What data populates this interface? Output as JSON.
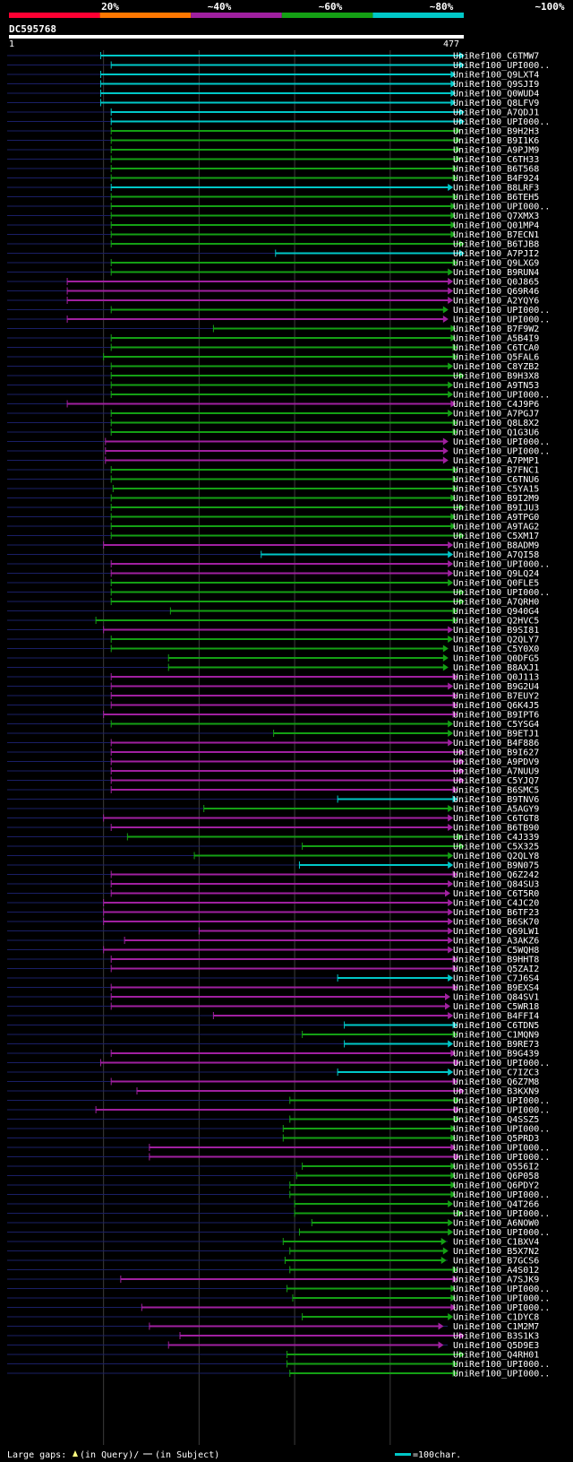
{
  "header": {
    "ticks": [
      "20%",
      "~40%",
      "~60%",
      "~80%",
      "~100%"
    ],
    "colors": [
      "#ff0033",
      "#ff7700",
      "#a020a0",
      "#14a014",
      "#00c8c8"
    ]
  },
  "query": {
    "id": "DC595768",
    "start": "1",
    "end": "477"
  },
  "legend": {
    "gaps_text": "Large gaps:",
    "query_gap_text": "(in Query)/",
    "subject_gap_text": "(in Subject)",
    "scale_text": "=100char."
  },
  "chart_data": {
    "type": "alignment-overview",
    "query_id": "DC595768",
    "query_length": 477,
    "identity_bins": [
      "20%",
      "~40%",
      "~60%",
      "~80%",
      "~100%"
    ],
    "hits": [
      {
        "id": "UniRef100_C6TMW7",
        "start": 97,
        "end": 477,
        "cls": "c"
      },
      {
        "id": "UniRef100_UPI000..",
        "start": 108,
        "end": 477,
        "cls": "c"
      },
      {
        "id": "UniRef100_Q9LXT4",
        "start": 97,
        "end": 468,
        "cls": "c"
      },
      {
        "id": "UniRef100_Q9SJI9",
        "start": 97,
        "end": 468,
        "cls": "c"
      },
      {
        "id": "UniRef100_Q0WUD4",
        "start": 97,
        "end": 468,
        "cls": "c"
      },
      {
        "id": "UniRef100_Q8LFV9",
        "start": 97,
        "end": 468,
        "cls": "c"
      },
      {
        "id": "UniRef100_A7QDJ1",
        "start": 108,
        "end": 477,
        "cls": "c"
      },
      {
        "id": "UniRef100_UPI000..",
        "start": 108,
        "end": 477,
        "cls": "c"
      },
      {
        "id": "UniRef100_B9H2H3",
        "start": 108,
        "end": 473,
        "cls": "g"
      },
      {
        "id": "UniRef100_B9I1K6",
        "start": 108,
        "end": 473,
        "cls": "g"
      },
      {
        "id": "UniRef100_A9PJM9",
        "start": 108,
        "end": 473,
        "cls": "g"
      },
      {
        "id": "UniRef100_C6TH33",
        "start": 108,
        "end": 473,
        "cls": "g"
      },
      {
        "id": "UniRef100_B6T568",
        "start": 108,
        "end": 470,
        "cls": "g"
      },
      {
        "id": "UniRef100_B4F924",
        "start": 108,
        "end": 470,
        "cls": "g"
      },
      {
        "id": "UniRef100_B8LRF3",
        "start": 108,
        "end": 465,
        "cls": "c"
      },
      {
        "id": "UniRef100_B6TEH5",
        "start": 108,
        "end": 470,
        "cls": "g"
      },
      {
        "id": "UniRef100_UPI000..",
        "start": 108,
        "end": 468,
        "cls": "g"
      },
      {
        "id": "UniRef100_Q7XMX3",
        "start": 108,
        "end": 468,
        "cls": "g"
      },
      {
        "id": "UniRef100_Q01MP4",
        "start": 108,
        "end": 468,
        "cls": "g"
      },
      {
        "id": "UniRef100_B7ECN1",
        "start": 108,
        "end": 468,
        "cls": "g"
      },
      {
        "id": "UniRef100_B6TJB8",
        "start": 108,
        "end": 477,
        "cls": "g"
      },
      {
        "id": "UniRef100_A7PJI2",
        "start": 280,
        "end": 477,
        "cls": "c"
      },
      {
        "id": "UniRef100_Q9LXG9",
        "start": 108,
        "end": 470,
        "cls": "g"
      },
      {
        "id": "UniRef100_B9RUN4",
        "start": 108,
        "end": 465,
        "cls": "g"
      },
      {
        "id": "UniRef100_Q0J865",
        "start": 62,
        "end": 465,
        "cls": "m"
      },
      {
        "id": "UniRef100_Q69R46",
        "start": 62,
        "end": 465,
        "cls": "m"
      },
      {
        "id": "UniRef100_A2YQY6",
        "start": 62,
        "end": 465,
        "cls": "m"
      },
      {
        "id": "UniRef100_UPI000..",
        "start": 108,
        "end": 460,
        "cls": "g"
      },
      {
        "id": "UniRef100_UPI000..",
        "start": 62,
        "end": 460,
        "cls": "m"
      },
      {
        "id": "UniRef100_B7F9W2",
        "start": 215,
        "end": 468,
        "cls": "g"
      },
      {
        "id": "UniRef100_A5B4I9",
        "start": 108,
        "end": 468,
        "cls": "g"
      },
      {
        "id": "UniRef100_C6TCA0",
        "start": 108,
        "end": 470,
        "cls": "g"
      },
      {
        "id": "UniRef100_Q5FAL6",
        "start": 100,
        "end": 470,
        "cls": "g"
      },
      {
        "id": "UniRef100_C8YZB2",
        "start": 108,
        "end": 465,
        "cls": "g"
      },
      {
        "id": "UniRef100_B9H3X8",
        "start": 108,
        "end": 477,
        "cls": "g"
      },
      {
        "id": "UniRef100_A9TN53",
        "start": 108,
        "end": 465,
        "cls": "g"
      },
      {
        "id": "UniRef100_UPI000..",
        "start": 108,
        "end": 465,
        "cls": "g"
      },
      {
        "id": "UniRef100_C4J9P6",
        "start": 62,
        "end": 468,
        "cls": "m"
      },
      {
        "id": "UniRef100_A7PGJ7",
        "start": 108,
        "end": 465,
        "cls": "g"
      },
      {
        "id": "UniRef100_Q8L8X2",
        "start": 108,
        "end": 470,
        "cls": "g"
      },
      {
        "id": "UniRef100_Q1G3U6",
        "start": 108,
        "end": 470,
        "cls": "g"
      },
      {
        "id": "UniRef100_UPI000..",
        "start": 102,
        "end": 460,
        "cls": "m"
      },
      {
        "id": "UniRef100_UPI000..",
        "start": 102,
        "end": 460,
        "cls": "m"
      },
      {
        "id": "UniRef100_A7PMP1",
        "start": 102,
        "end": 460,
        "cls": "m"
      },
      {
        "id": "UniRef100_B7FNC1",
        "start": 108,
        "end": 470,
        "cls": "g"
      },
      {
        "id": "UniRef100_C6TNU6",
        "start": 108,
        "end": 470,
        "cls": "g"
      },
      {
        "id": "UniRef100_C5YA15",
        "start": 110,
        "end": 470,
        "cls": "g"
      },
      {
        "id": "UniRef100_B9I2M9",
        "start": 108,
        "end": 468,
        "cls": "g"
      },
      {
        "id": "UniRef100_B9IJU3",
        "start": 108,
        "end": 477,
        "cls": "g"
      },
      {
        "id": "UniRef100_A9TPG0",
        "start": 108,
        "end": 468,
        "cls": "g"
      },
      {
        "id": "UniRef100_A9TAG2",
        "start": 108,
        "end": 468,
        "cls": "g"
      },
      {
        "id": "UniRef100_C5XM17",
        "start": 108,
        "end": 477,
        "cls": "g"
      },
      {
        "id": "UniRef100_B8ADM9",
        "start": 100,
        "end": 465,
        "cls": "m"
      },
      {
        "id": "UniRef100_A7QI58",
        "start": 265,
        "end": 465,
        "cls": "c"
      },
      {
        "id": "UniRef100_UPI000..",
        "start": 108,
        "end": 465,
        "cls": "m"
      },
      {
        "id": "UniRef100_Q9LQ24",
        "start": 108,
        "end": 465,
        "cls": "m"
      },
      {
        "id": "UniRef100_Q0FLE5",
        "start": 108,
        "end": 465,
        "cls": "g"
      },
      {
        "id": "UniRef100_UPI000..",
        "start": 108,
        "end": 477,
        "cls": "g"
      },
      {
        "id": "UniRef100_A7QRH0",
        "start": 108,
        "end": 477,
        "cls": "g"
      },
      {
        "id": "UniRef100_Q940G4",
        "start": 170,
        "end": 470,
        "cls": "g"
      },
      {
        "id": "UniRef100_Q2HVC5",
        "start": 92,
        "end": 470,
        "cls": "g"
      },
      {
        "id": "UniRef100_B9SI81",
        "start": 100,
        "end": 465,
        "cls": "m"
      },
      {
        "id": "UniRef100_Q2QLY7",
        "start": 108,
        "end": 465,
        "cls": "g"
      },
      {
        "id": "UniRef100_C5Y0X0",
        "start": 108,
        "end": 460,
        "cls": "g"
      },
      {
        "id": "UniRef100_Q0DFG5",
        "start": 168,
        "end": 460,
        "cls": "g"
      },
      {
        "id": "UniRef100_B8AXJ1",
        "start": 168,
        "end": 460,
        "cls": "g"
      },
      {
        "id": "UniRef100_Q0J113",
        "start": 108,
        "end": 470,
        "cls": "m"
      },
      {
        "id": "UniRef100_B9G2U4",
        "start": 108,
        "end": 465,
        "cls": "m"
      },
      {
        "id": "UniRef100_B7EUY2",
        "start": 108,
        "end": 470,
        "cls": "m"
      },
      {
        "id": "UniRef100_Q6K4J5",
        "start": 108,
        "end": 470,
        "cls": "m"
      },
      {
        "id": "UniRef100_B9IPT6",
        "start": 100,
        "end": 470,
        "cls": "m"
      },
      {
        "id": "UniRef100_C5YSG4",
        "start": 108,
        "end": 465,
        "cls": "g"
      },
      {
        "id": "UniRef100_B9ETJ1",
        "start": 278,
        "end": 465,
        "cls": "g"
      },
      {
        "id": "UniRef100_B4F886",
        "start": 108,
        "end": 465,
        "cls": "m"
      },
      {
        "id": "UniRef100_B9I627",
        "start": 108,
        "end": 477,
        "cls": "m"
      },
      {
        "id": "UniRef100_A9PDV9",
        "start": 108,
        "end": 477,
        "cls": "m"
      },
      {
        "id": "UniRef100_A7NUU9",
        "start": 108,
        "end": 477,
        "cls": "m"
      },
      {
        "id": "UniRef100_C5YJQ7",
        "start": 108,
        "end": 477,
        "cls": "m"
      },
      {
        "id": "UniRef100_B6SMC5",
        "start": 108,
        "end": 470,
        "cls": "m"
      },
      {
        "id": "UniRef100_B9TNV6",
        "start": 345,
        "end": 470,
        "cls": "c"
      },
      {
        "id": "UniRef100_A5AGY9",
        "start": 205,
        "end": 465,
        "cls": "g"
      },
      {
        "id": "UniRef100_C6TGT8",
        "start": 100,
        "end": 465,
        "cls": "m"
      },
      {
        "id": "UniRef100_B6TB90",
        "start": 108,
        "end": 465,
        "cls": "m"
      },
      {
        "id": "UniRef100_C4J339",
        "start": 125,
        "end": 475,
        "cls": "g"
      },
      {
        "id": "UniRef100_C5X325",
        "start": 308,
        "end": 477,
        "cls": "g"
      },
      {
        "id": "UniRef100_Q2QLY8",
        "start": 195,
        "end": 465,
        "cls": "g"
      },
      {
        "id": "UniRef100_B9N075",
        "start": 305,
        "end": 465,
        "cls": "c"
      },
      {
        "id": "UniRef100_Q6Z242",
        "start": 108,
        "end": 470,
        "cls": "m"
      },
      {
        "id": "UniRef100_Q84SU3",
        "start": 108,
        "end": 465,
        "cls": "m"
      },
      {
        "id": "UniRef100_C6T5R0",
        "start": 108,
        "end": 462,
        "cls": "m"
      },
      {
        "id": "UniRef100_C4JC20",
        "start": 100,
        "end": 465,
        "cls": "m"
      },
      {
        "id": "UniRef100_B6TF23",
        "start": 100,
        "end": 465,
        "cls": "m"
      },
      {
        "id": "UniRef100_B6SK70",
        "start": 100,
        "end": 465,
        "cls": "m"
      },
      {
        "id": "UniRef100_Q69LW1",
        "start": 200,
        "end": 465,
        "cls": "m"
      },
      {
        "id": "UniRef100_A3AKZ6",
        "start": 122,
        "end": 465,
        "cls": "m"
      },
      {
        "id": "UniRef100_C5WQH8",
        "start": 100,
        "end": 465,
        "cls": "m"
      },
      {
        "id": "UniRef100_B9HHT8",
        "start": 108,
        "end": 470,
        "cls": "m"
      },
      {
        "id": "UniRef100_Q5ZAI2",
        "start": 108,
        "end": 470,
        "cls": "m"
      },
      {
        "id": "UniRef100_C7J6S4",
        "start": 345,
        "end": 465,
        "cls": "c"
      },
      {
        "id": "UniRef100_B9EXS4",
        "start": 108,
        "end": 470,
        "cls": "m"
      },
      {
        "id": "UniRef100_Q84SV1",
        "start": 108,
        "end": 462,
        "cls": "m"
      },
      {
        "id": "UniRef100_C5WR18",
        "start": 108,
        "end": 462,
        "cls": "m"
      },
      {
        "id": "UniRef100_B4FFI4",
        "start": 215,
        "end": 465,
        "cls": "m"
      },
      {
        "id": "UniRef100_C6TDN5",
        "start": 352,
        "end": 470,
        "cls": "c"
      },
      {
        "id": "UniRef100_C1MQN9",
        "start": 308,
        "end": 470,
        "cls": "g"
      },
      {
        "id": "UniRef100_B9RE73",
        "start": 352,
        "end": 465,
        "cls": "c"
      },
      {
        "id": "UniRef100_B9G439",
        "start": 108,
        "end": 468,
        "cls": "m"
      },
      {
        "id": "UniRef100_UPI000..",
        "start": 97,
        "end": 472,
        "cls": "m"
      },
      {
        "id": "UniRef100_C7IZC3",
        "start": 345,
        "end": 465,
        "cls": "c"
      },
      {
        "id": "UniRef100_Q6Z7M8",
        "start": 108,
        "end": 470,
        "cls": "m"
      },
      {
        "id": "UniRef100_B3KXN9",
        "start": 135,
        "end": 477,
        "cls": "m"
      },
      {
        "id": "UniRef100_UPI000..",
        "start": 295,
        "end": 472,
        "cls": "g"
      },
      {
        "id": "UniRef100_UPI000..",
        "start": 92,
        "end": 472,
        "cls": "m"
      },
      {
        "id": "UniRef100_Q4SSZ5",
        "start": 295,
        "end": 472,
        "cls": "g"
      },
      {
        "id": "UniRef100_UPI000..",
        "start": 288,
        "end": 468,
        "cls": "g"
      },
      {
        "id": "UniRef100_Q5PRD3",
        "start": 288,
        "end": 468,
        "cls": "g"
      },
      {
        "id": "UniRef100_UPI000..",
        "start": 148,
        "end": 468,
        "cls": "m"
      },
      {
        "id": "UniRef100_UPI000..",
        "start": 148,
        "end": 472,
        "cls": "m"
      },
      {
        "id": "UniRef100_Q556I2",
        "start": 308,
        "end": 468,
        "cls": "g"
      },
      {
        "id": "UniRef100_Q6P058",
        "start": 302,
        "end": 468,
        "cls": "g"
      },
      {
        "id": "UniRef100_Q6PDY2",
        "start": 295,
        "end": 468,
        "cls": "g"
      },
      {
        "id": "UniRef100_UPI000..",
        "start": 295,
        "end": 468,
        "cls": "g"
      },
      {
        "id": "UniRef100_Q4T266",
        "start": 300,
        "end": 465,
        "cls": "g"
      },
      {
        "id": "UniRef100_UPI000..",
        "start": 300,
        "end": 475,
        "cls": "g"
      },
      {
        "id": "UniRef100_A6NOW0",
        "start": 318,
        "end": 465,
        "cls": "g"
      },
      {
        "id": "UniRef100_UPI000..",
        "start": 305,
        "end": 465,
        "cls": "g"
      },
      {
        "id": "UniRef100_C1BXV4",
        "start": 288,
        "end": 458,
        "cls": "g"
      },
      {
        "id": "UniRef100_B5X7N2",
        "start": 295,
        "end": 460,
        "cls": "g"
      },
      {
        "id": "UniRef100_B7GCS6",
        "start": 290,
        "end": 458,
        "cls": "g"
      },
      {
        "id": "UniRef100_A4S012",
        "start": 295,
        "end": 470,
        "cls": "g"
      },
      {
        "id": "UniRef100_A7SJK9",
        "start": 118,
        "end": 470,
        "cls": "m"
      },
      {
        "id": "UniRef100_UPI000..",
        "start": 292,
        "end": 468,
        "cls": "g"
      },
      {
        "id": "UniRef100_UPI000..",
        "start": 298,
        "end": 468,
        "cls": "g"
      },
      {
        "id": "UniRef100_UPI000..",
        "start": 140,
        "end": 468,
        "cls": "m"
      },
      {
        "id": "UniRef100_C1DYC8",
        "start": 308,
        "end": 465,
        "cls": "g"
      },
      {
        "id": "UniRef100_C1M2M7",
        "start": 148,
        "end": 455,
        "cls": "m"
      },
      {
        "id": "UniRef100_B3S1K3",
        "start": 180,
        "end": 477,
        "cls": "m"
      },
      {
        "id": "UniRef100_Q5D9E3",
        "start": 168,
        "end": 455,
        "cls": "m"
      },
      {
        "id": "UniRef100_Q4RH01",
        "start": 292,
        "end": 477,
        "cls": "g"
      },
      {
        "id": "UniRef100_UPI000..",
        "start": 292,
        "end": 470,
        "cls": "g"
      },
      {
        "id": "UniRef100_UPI000..",
        "start": 295,
        "end": 470,
        "cls": "g"
      }
    ]
  }
}
